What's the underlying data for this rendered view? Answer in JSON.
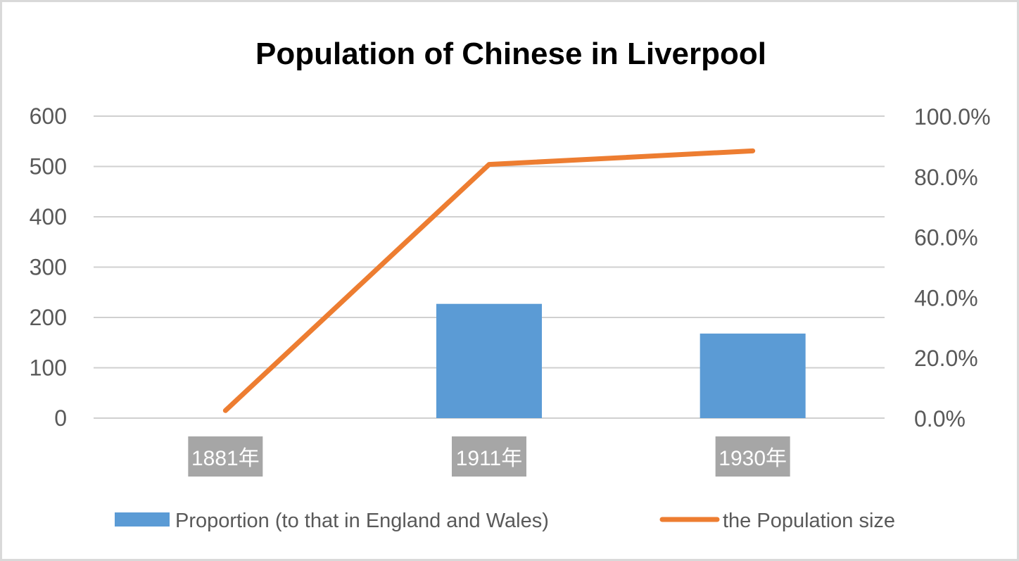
{
  "chart_data": {
    "type": "bar+line",
    "title": "Population of Chinese in Liverpool",
    "categories": [
      "1881年",
      "1911年",
      "1930年"
    ],
    "series": [
      {
        "name": "Proportion (to that in England and Wales)",
        "type": "bar",
        "axis": "left",
        "values": [
          0,
          227,
          168
        ],
        "color": "#5b9bd5"
      },
      {
        "name": "the Population size",
        "type": "line",
        "axis": "right",
        "values": [
          0.025,
          0.84,
          0.885
        ],
        "color": "#ed7d31"
      }
    ],
    "y_left": {
      "ylim": [
        0,
        600
      ],
      "ticks": [
        0,
        100,
        200,
        300,
        400,
        500,
        600
      ],
      "tick_labels": [
        "0",
        "100",
        "200",
        "300",
        "400",
        "500",
        "600"
      ]
    },
    "y_right": {
      "ylim": [
        0,
        1.0
      ],
      "ticks": [
        0,
        0.2,
        0.4,
        0.6,
        0.8,
        1.0
      ],
      "tick_labels": [
        "0.0%",
        "20.0%",
        "40.0%",
        "60.0%",
        "80.0%",
        "100.0%"
      ]
    },
    "grid": true,
    "legend_position": "bottom",
    "category_label_background": "#a6a6a6",
    "grid_color": "#d0d0d0"
  }
}
